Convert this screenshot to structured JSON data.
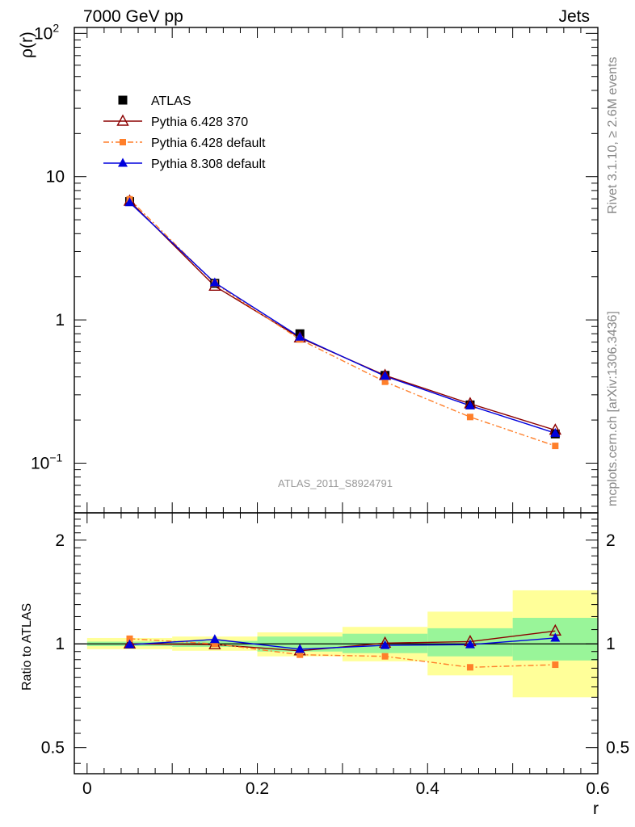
{
  "header": {
    "left": "7000 GeV pp",
    "right": "Jets"
  },
  "side_labels": {
    "upper": "Rivet 3.1.10, ≥ 2.6M events",
    "lower": "mcplots.cern.ch [arXiv:1306.3436]"
  },
  "analysis_id": "ATLAS_2011_S8924791",
  "chart_data": [
    {
      "type": "line",
      "panel": "main",
      "ylabel": "ρ(r)",
      "yscale": "log",
      "ylim": [
        0.045,
        110
      ],
      "xlim": [
        -0.015,
        0.6
      ],
      "y_ticks": [
        {
          "v": 0.1,
          "base": "10",
          "exp": "−1"
        },
        {
          "v": 1,
          "base": "1",
          "exp": ""
        },
        {
          "v": 10,
          "base": "10",
          "exp": ""
        },
        {
          "v": 100,
          "base": "10",
          "exp": "2"
        }
      ],
      "legend_position": "top-left",
      "x": [
        0.05,
        0.15,
        0.25,
        0.35,
        0.45,
        0.55
      ],
      "series": [
        {
          "name": "ATLAS",
          "style": "data",
          "color": "#000000",
          "values": [
            6.7,
            1.8,
            0.8,
            0.41,
            0.255,
            0.16
          ]
        },
        {
          "name": "Pythia 6.428 370",
          "style": "open-triangle",
          "color": "#8b0000",
          "values": [
            6.75,
            1.72,
            0.75,
            0.41,
            0.26,
            0.17
          ]
        },
        {
          "name": "Pythia 6.428 default",
          "style": "dashdot-square",
          "color": "#ff7f2a",
          "values": [
            6.95,
            1.8,
            0.73,
            0.37,
            0.21,
            0.132
          ]
        },
        {
          "name": "Pythia 8.308 default",
          "style": "filled-triangle",
          "color": "#0000dd",
          "values": [
            6.6,
            1.82,
            0.76,
            0.405,
            0.252,
            0.162
          ]
        }
      ]
    },
    {
      "type": "line",
      "panel": "ratio",
      "ylabel": "Ratio to ATLAS",
      "xlabel": "r",
      "yscale": "log",
      "ylim": [
        0.42,
        2.4
      ],
      "xlim": [
        -0.015,
        0.6
      ],
      "x_ticks": [
        "0",
        "0.2",
        "0.4",
        "0.6"
      ],
      "y_ticks": [
        {
          "v": 0.5,
          "label": "0.5"
        },
        {
          "v": 1,
          "label": "1"
        },
        {
          "v": 2,
          "label": "2"
        }
      ],
      "bins": [
        [
          0.0,
          0.1
        ],
        [
          0.1,
          0.2
        ],
        [
          0.2,
          0.3
        ],
        [
          0.3,
          0.4
        ],
        [
          0.4,
          0.5
        ],
        [
          0.5,
          0.6
        ]
      ],
      "band_inner": [
        [
          0.985,
          1.015
        ],
        [
          0.98,
          1.02
        ],
        [
          0.95,
          1.05
        ],
        [
          0.94,
          1.07
        ],
        [
          0.92,
          1.11
        ],
        [
          0.895,
          1.19
        ]
      ],
      "band_outer": [
        [
          0.965,
          1.04
        ],
        [
          0.955,
          1.05
        ],
        [
          0.92,
          1.08
        ],
        [
          0.89,
          1.12
        ],
        [
          0.81,
          1.24
        ],
        [
          0.7,
          1.43
        ]
      ],
      "band_colors": {
        "inner": "#99f599",
        "outer": "#ffff99"
      },
      "x": [
        0.05,
        0.15,
        0.25,
        0.35,
        0.45,
        0.55
      ],
      "series": [
        {
          "name": "Pythia 6.428 370",
          "style": "open-triangle",
          "color": "#8b0000",
          "values": [
            1.0,
            0.995,
            0.955,
            1.005,
            1.015,
            1.09
          ]
        },
        {
          "name": "Pythia 6.428 default",
          "style": "dashdot-square",
          "color": "#ff7f2a",
          "values": [
            1.035,
            1.0,
            0.93,
            0.92,
            0.855,
            0.87
          ]
        },
        {
          "name": "Pythia 8.308 default",
          "style": "filled-triangle",
          "color": "#0000dd",
          "values": [
            0.995,
            1.03,
            0.965,
            0.99,
            0.995,
            1.04
          ]
        }
      ]
    }
  ]
}
